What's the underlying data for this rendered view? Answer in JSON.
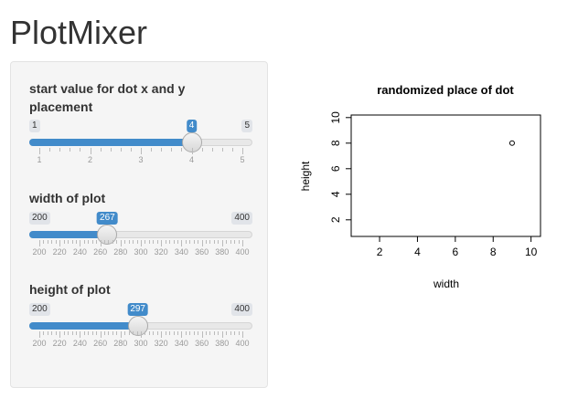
{
  "app": {
    "title": "PlotMixer"
  },
  "sidebar": {
    "sliders": [
      {
        "id": "start",
        "label": "start value for dot x and y placement",
        "min": 1,
        "max": 5,
        "value": 4,
        "step": 1,
        "min_label": "1",
        "max_label": "5",
        "value_label": "4",
        "grid_labels": [
          "1",
          "2",
          "3",
          "4",
          "5"
        ]
      },
      {
        "id": "width",
        "label": "width of plot",
        "min": 200,
        "max": 400,
        "value": 267,
        "min_label": "200",
        "max_label": "400",
        "value_label": "267",
        "grid_labels": [
          "200",
          "220",
          "240",
          "260",
          "280",
          "300",
          "320",
          "340",
          "360",
          "380",
          "400"
        ]
      },
      {
        "id": "height",
        "label": "height of plot",
        "min": 200,
        "max": 400,
        "value": 297,
        "min_label": "200",
        "max_label": "400",
        "value_label": "297",
        "grid_labels": [
          "200",
          "220",
          "240",
          "260",
          "280",
          "300",
          "320",
          "340",
          "360",
          "380",
          "400"
        ]
      }
    ]
  },
  "plot": {
    "title": "randomized place of dot",
    "xlabel": "width",
    "ylabel": "height",
    "x_ticks": [
      "2",
      "4",
      "6",
      "8",
      "10"
    ],
    "y_ticks": [
      "2",
      "4",
      "6",
      "8",
      "10"
    ],
    "xlim": [
      0.5,
      10.5
    ],
    "ylim": [
      0.7,
      10.2
    ],
    "point": {
      "x": 9,
      "y": 8
    }
  },
  "colors": {
    "accent": "#428bca",
    "panel_bg": "#f5f5f5"
  }
}
